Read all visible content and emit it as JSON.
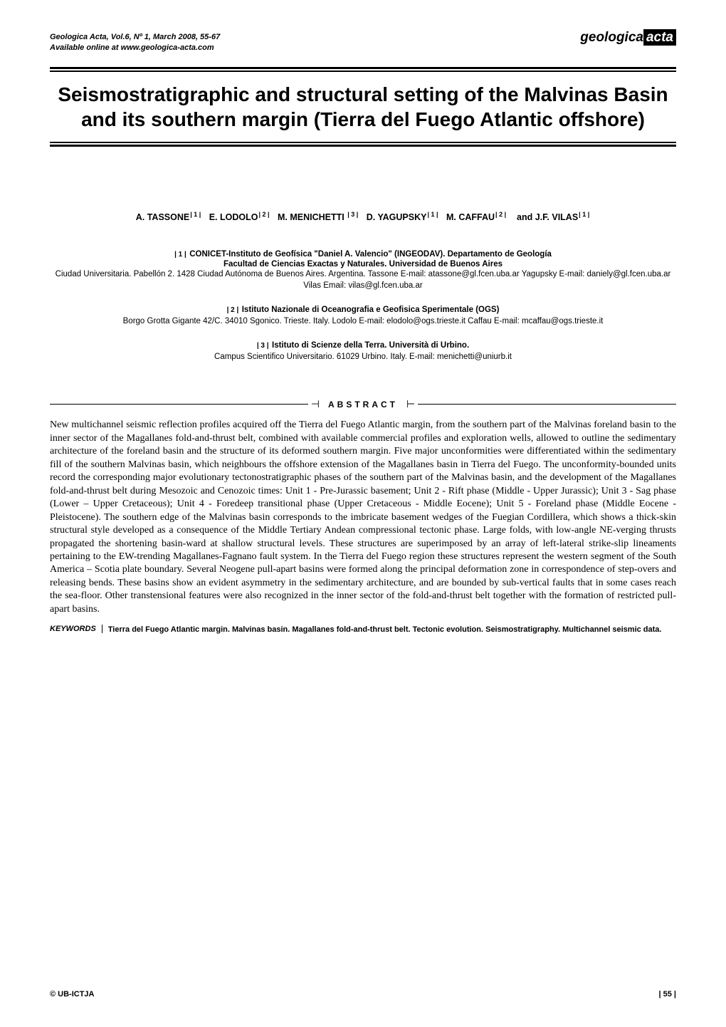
{
  "header": {
    "citation_line1": "Geologica Acta, Vol.6, Nº 1, March 2008, 55-67",
    "citation_line2": "Available online at www.geologica-acta.com",
    "logo_part1": "geologica",
    "logo_part2": "acta"
  },
  "title": "Seismostratigraphic and structural setting of the Malvinas Basin and its southern margin (Tierra del Fuego Atlantic offshore)",
  "authors": [
    {
      "name": "A. TASSONE",
      "marker": "1"
    },
    {
      "name": "E. LODOLO",
      "marker": "2"
    },
    {
      "name": "M. MENICHETTI",
      "marker": "3"
    },
    {
      "name": "D. YAGUPSKY",
      "marker": "1"
    },
    {
      "name": "M. CAFFAU",
      "marker": "2"
    },
    {
      "prefix": "and",
      "name": "J.F. VILAS",
      "marker": "1"
    }
  ],
  "affiliations": [
    {
      "marker": "1",
      "title_line1": "CONICET-Instituto de Geofísica \"Daniel A. Valencio\" (INGEODAV). Departamento de Geología",
      "title_line2": "Facultad de Ciencias Exactas y Naturales. Universidad de Buenos Aires",
      "details": "Ciudad Universitaria. Pabellón 2. 1428 Ciudad Autónoma de Buenos Aires. Argentina. Tassone E-mail: atassone@gl.fcen.uba.ar Yagupsky E-mail: daniely@gl.fcen.uba.ar  Vilas Email: vilas@gl.fcen.uba.ar"
    },
    {
      "marker": "2",
      "title_line1": "Istituto Nazionale di Oceanografia e Geofisica Sperimentale (OGS)",
      "details": "Borgo Grotta Gigante 42/C. 34010 Sgonico. Trieste. Italy. Lodolo E-mail: elodolo@ogs.trieste.it  Caffau E-mail: mcaffau@ogs.trieste.it"
    },
    {
      "marker": "3",
      "title_line1": "Istituto di Scienze della Terra. Università di Urbino.",
      "details": "Campus Scientifico Universitario. 61029 Urbino. Italy. E-mail: menichetti@uniurb.it"
    }
  ],
  "abstract": {
    "label": "ABSTRACT",
    "text": "New multichannel seismic reflection profiles acquired off the Tierra del Fuego Atlantic margin, from the southern part of the Malvinas foreland basin to the inner sector of the Magallanes fold-and-thrust belt, combined with available commercial profiles and exploration wells, allowed to outline the sedimentary architecture of the foreland basin and the structure of its deformed southern margin. Five major unconformities were differentiated within the sedimentary fill of the southern Malvinas basin, which neighbours the offshore extension of the Magallanes basin in Tierra del Fuego. The unconformity-bounded units record the corresponding major evolutionary tectonostratigraphic phases of the southern part of the Malvinas basin, and the development of the Magallanes fold-and-thrust belt during Mesozoic and Cenozoic times: Unit 1 - Pre-Jurassic basement; Unit 2 - Rift phase (Middle - Upper Jurassic); Unit 3 - Sag phase (Lower – Upper Cretaceous); Unit 4 - Foredeep transitional phase (Upper Cretaceous - Middle Eocene); Unit 5 - Foreland phase (Middle Eocene - Pleistocene). The southern edge of the Malvinas basin corresponds to the imbricate basement wedges of the Fuegian Cordillera, which shows a thick-skin structural style developed as a consequence of the Middle Tertiary Andean compressional tectonic phase. Large folds, with low-angle NE-verging thrusts propagated the shortening basin-ward at shallow structural levels. These structures are superimposed by an array of left-lateral strike-slip lineaments pertaining to the EW-trending Magallanes-Fagnano fault system. In the Tierra del Fuego region these structures represent the western segment of the South America – Scotia plate boundary. Several Neogene pull-apart basins were formed along the principal deformation zone in correspondence of step-overs and releasing bends. These basins show an evident asymmetry in the sedimentary architecture, and are bounded by sub-vertical faults that in some cases reach the sea-floor. Other transtensional features were also recognized in the inner sector of the fold-and-thrust belt together with the formation of restricted pull-apart basins."
  },
  "keywords": {
    "label": "KEYWORDS",
    "text": "Tierra del Fuego Atlantic margin. Malvinas basin. Magallanes fold-and-thrust belt. Tectonic evolution. Seismostratigraphy. Multichannel seismic data."
  },
  "footer": {
    "copyright": "© UB-ICTJA",
    "page": "55"
  },
  "styling": {
    "page_bg": "#ffffff",
    "text_color": "#000000",
    "rule_color": "#000000",
    "title_fontsize": 28,
    "body_fontsize": 14,
    "meta_fontsize": 11,
    "author_fontsize": 12.5,
    "affil_fontsize": 11.5,
    "keywords_fontsize": 11
  }
}
